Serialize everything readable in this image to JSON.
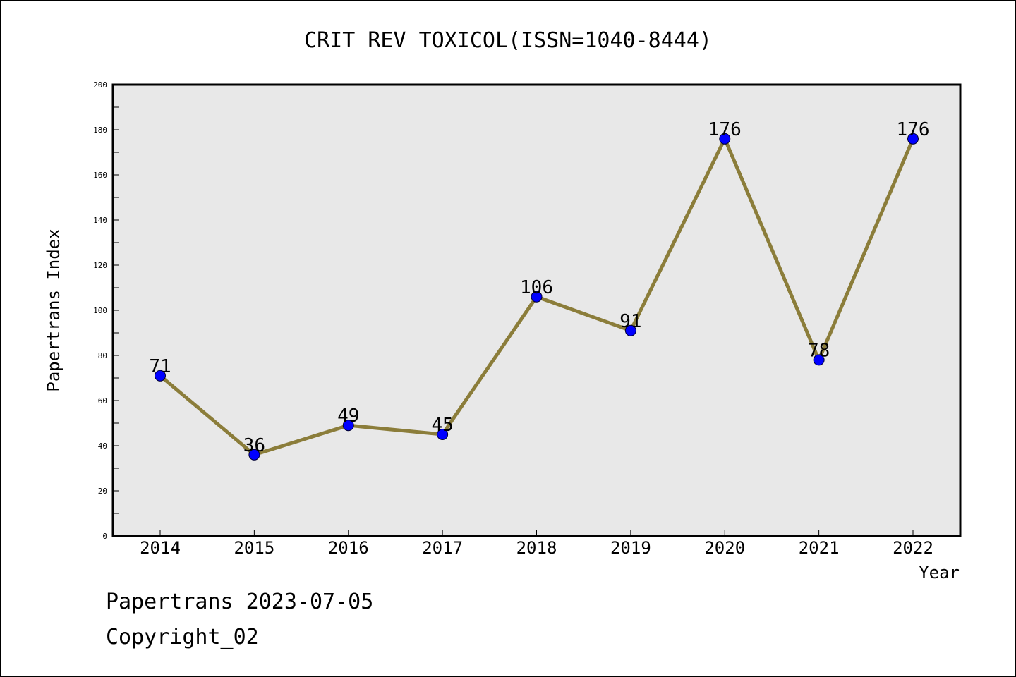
{
  "chart_data": {
    "type": "line",
    "title": "CRIT REV TOXICOL(ISSN=1040-8444)",
    "xlabel": "Year",
    "ylabel": "Papertrans Index",
    "categories": [
      "2014",
      "2015",
      "2016",
      "2017",
      "2018",
      "2019",
      "2020",
      "2021",
      "2022"
    ],
    "values": [
      71,
      36,
      49,
      45,
      106,
      91,
      176,
      78,
      176
    ],
    "data_labels": [
      "71",
      "36",
      "49",
      "45",
      "106",
      "91",
      "176",
      "78",
      "176"
    ],
    "ylim": [
      0,
      200
    ],
    "yticks": [
      "0",
      "20",
      "40",
      "60",
      "80",
      "100",
      "120",
      "140",
      "160",
      "180",
      "200"
    ],
    "grid": false,
    "line_color": "#8B7D3A",
    "marker_color": "#0000FF",
    "plot_background": "#E8E8E8"
  },
  "footer": {
    "date_line": "Papertrans 2023-07-05",
    "copyright_line": "Copyright_02"
  }
}
